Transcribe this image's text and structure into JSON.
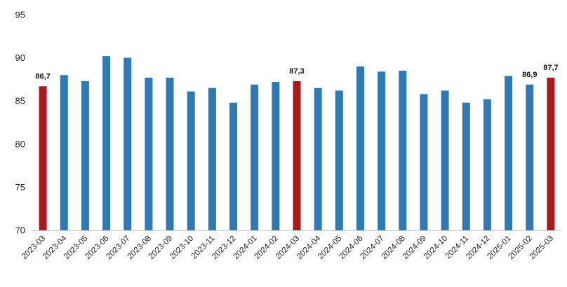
{
  "chart_data": {
    "type": "bar",
    "title": "",
    "xlabel": "",
    "ylabel": "",
    "ylim": [
      70,
      95
    ],
    "yticks": [
      70,
      75,
      80,
      85,
      90,
      95
    ],
    "grid": false,
    "categories": [
      "2023-03",
      "2023-04",
      "2023-05",
      "2023-06",
      "2023-07",
      "2023-08",
      "2023-09",
      "2023-10",
      "2023-11",
      "2023-12",
      "2024-01",
      "2024-02",
      "2024-03",
      "2024-04",
      "2024-05",
      "2024-06",
      "2024-07",
      "2024-08",
      "2024-09",
      "2024-10",
      "2024-11",
      "2024-12",
      "2025-01",
      "2025-02",
      "2025-03"
    ],
    "values": [
      86.7,
      88.0,
      87.3,
      90.2,
      90.0,
      87.7,
      87.7,
      86.1,
      86.5,
      84.8,
      86.9,
      87.2,
      87.3,
      86.5,
      86.2,
      89.0,
      88.4,
      88.5,
      85.8,
      86.2,
      84.8,
      85.2,
      87.9,
      86.9,
      87.7
    ],
    "highlighted": [
      0,
      12,
      24
    ],
    "data_labels": [
      {
        "index": 0,
        "text": "86,7"
      },
      {
        "index": 12,
        "text": "87,3"
      },
      {
        "index": 23,
        "text": "86,9"
      },
      {
        "index": 24,
        "text": "87,7"
      }
    ],
    "colors": {
      "bar": "#2e7ab6",
      "highlight": "#a8191c"
    }
  }
}
